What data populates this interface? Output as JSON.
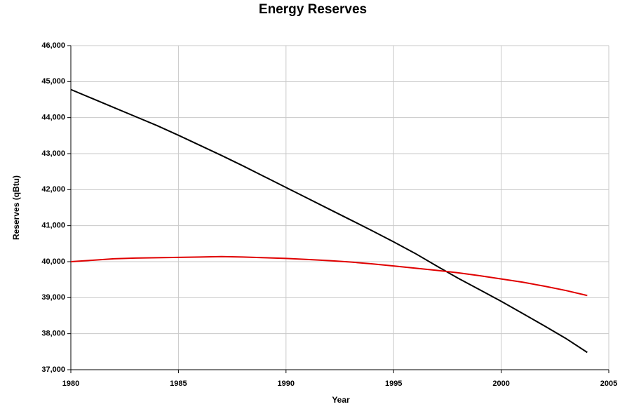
{
  "chart_data": {
    "type": "line",
    "title": "Energy Reserves",
    "xlabel": "Year",
    "ylabel": "Reserves (qBtu)",
    "x": [
      1980,
      1981,
      1982,
      1983,
      1984,
      1985,
      1986,
      1987,
      1988,
      1989,
      1990,
      1991,
      1992,
      1993,
      1994,
      1995,
      1996,
      1997,
      1998,
      1999,
      2000,
      2001,
      2002,
      2003,
      2004
    ],
    "series": [
      {
        "color": "#000000",
        "values": [
          44780,
          44530,
          44280,
          44030,
          43780,
          43510,
          43230,
          42950,
          42660,
          42360,
          42060,
          41760,
          41460,
          41160,
          40860,
          40550,
          40230,
          39880,
          39540,
          39220,
          38900,
          38560,
          38220,
          37870,
          37480
        ]
      },
      {
        "color": "#e00000",
        "values": [
          40000,
          40040,
          40080,
          40100,
          40110,
          40120,
          40130,
          40140,
          40130,
          40110,
          40090,
          40060,
          40030,
          39990,
          39940,
          39880,
          39820,
          39760,
          39690,
          39610,
          39520,
          39430,
          39320,
          39200,
          39060
        ]
      }
    ],
    "xlim": [
      1980,
      2005
    ],
    "xticks": [
      1980,
      1985,
      1990,
      1995,
      2000,
      2005
    ],
    "ylim": [
      37000,
      46000
    ],
    "yticks": [
      {
        "value": 37000,
        "label": "37,000"
      },
      {
        "value": 38000,
        "label": "38,000"
      },
      {
        "value": 39000,
        "label": "39,000"
      },
      {
        "value": 40000,
        "label": "40,000"
      },
      {
        "value": 41000,
        "label": "41,000"
      },
      {
        "value": 42000,
        "label": "42,000"
      },
      {
        "value": 43000,
        "label": "43,000"
      },
      {
        "value": 44000,
        "label": "44,000"
      },
      {
        "value": 45000,
        "label": "45,000"
      },
      {
        "value": 46000,
        "label": "46,000"
      }
    ],
    "grid": true
  }
}
